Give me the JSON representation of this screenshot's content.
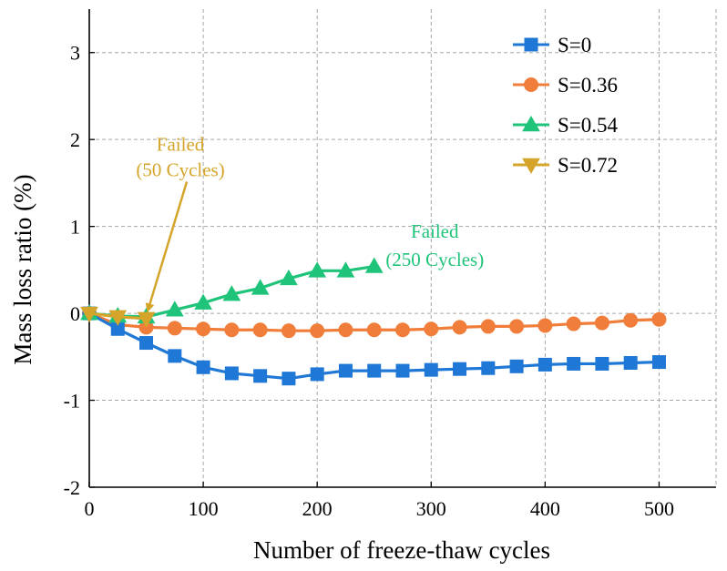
{
  "chart_data": {
    "type": "line",
    "title": "",
    "xlabel": "Number of freeze-thaw cycles",
    "ylabel": "Mass loss ratio (%)",
    "xlim": [
      0,
      550
    ],
    "ylim": [
      -2,
      3.5
    ],
    "xticks": [
      0,
      100,
      200,
      300,
      400,
      500
    ],
    "yticks": [
      -2,
      -1,
      0,
      1,
      2,
      3
    ],
    "xtick_labels": [
      "0",
      "100",
      "200",
      "300",
      "400",
      "500"
    ],
    "ytick_labels": [
      "-2",
      "-1",
      "0",
      "1",
      "2",
      "3"
    ],
    "grid": true,
    "legend_position": "top-right",
    "series": [
      {
        "name": "S=0",
        "color": "#1f77d6",
        "marker": "square",
        "x": [
          0,
          25,
          50,
          75,
          100,
          125,
          150,
          175,
          200,
          225,
          250,
          275,
          300,
          325,
          350,
          375,
          400,
          425,
          450,
          475,
          500
        ],
        "y": [
          0,
          -0.18,
          -0.34,
          -0.49,
          -0.62,
          -0.69,
          -0.72,
          -0.75,
          -0.7,
          -0.66,
          -0.66,
          -0.66,
          -0.65,
          -0.64,
          -0.63,
          -0.61,
          -0.59,
          -0.58,
          -0.58,
          -0.57,
          -0.56
        ]
      },
      {
        "name": "S=0.36",
        "color": "#f07d3a",
        "marker": "circle",
        "x": [
          0,
          25,
          50,
          75,
          100,
          125,
          150,
          175,
          200,
          225,
          250,
          275,
          300,
          325,
          350,
          375,
          400,
          425,
          450,
          475,
          500
        ],
        "y": [
          0,
          -0.13,
          -0.16,
          -0.17,
          -0.18,
          -0.19,
          -0.19,
          -0.2,
          -0.2,
          -0.19,
          -0.19,
          -0.19,
          -0.18,
          -0.16,
          -0.15,
          -0.15,
          -0.14,
          -0.12,
          -0.11,
          -0.08,
          -0.07
        ]
      },
      {
        "name": "S=0.54",
        "color": "#1fc47a",
        "marker": "triangle-up",
        "x": [
          0,
          25,
          50,
          75,
          100,
          125,
          150,
          175,
          200,
          225,
          250
        ],
        "y": [
          0,
          -0.03,
          -0.04,
          0.04,
          0.12,
          0.22,
          0.29,
          0.4,
          0.49,
          0.49,
          0.54
        ]
      },
      {
        "name": "S=0.72",
        "color": "#d4a52a",
        "marker": "triangle-down",
        "x": [
          0,
          25,
          50
        ],
        "y": [
          0,
          -0.04,
          -0.06
        ]
      }
    ],
    "annotations": [
      {
        "line1": "Failed",
        "line2": "(50 Cycles)",
        "color": "#d4a52a",
        "x": 48,
        "y": 1.2,
        "arrow_to_x": 52,
        "arrow_to_y": 0.06
      },
      {
        "line1": "Failed",
        "line2": "(250 Cycles)",
        "color": "#1fc47a",
        "x": 300,
        "y": 0.9
      }
    ]
  }
}
